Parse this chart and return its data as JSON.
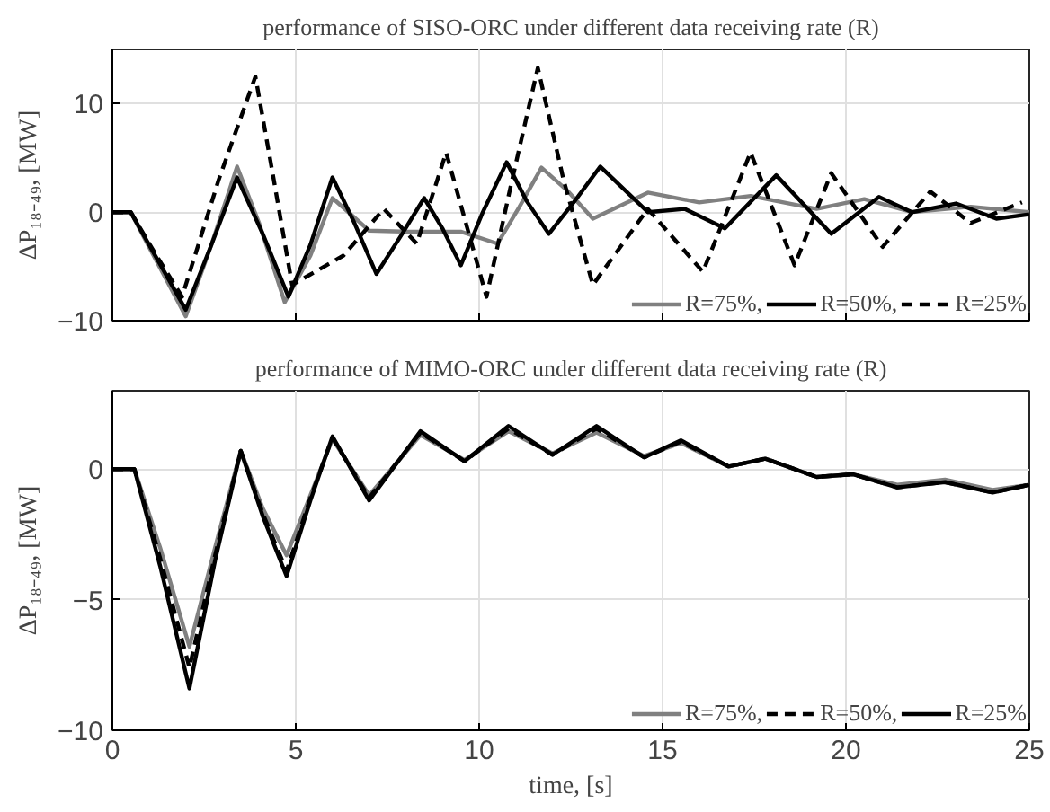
{
  "chart_data": [
    {
      "type": "line",
      "title": "performance of SISO-ORC under different data receiving rate (R)",
      "ylabel": "ΔP₁₈₋₄₉, [MW]",
      "xlim": [
        0,
        25
      ],
      "ylim": [
        -10,
        15
      ],
      "xticks": [
        0,
        5,
        10,
        15,
        20,
        25
      ],
      "yticks": [
        -10,
        0,
        10
      ],
      "tick_labels": "y",
      "grid": true,
      "legend": "bottom right",
      "series": [
        {
          "name": "R=75%,",
          "color": "#808080",
          "line_style": "solid",
          "x": [
            0,
            0.5,
            1.2,
            2.0,
            2.7,
            3.4,
            4.0,
            4.7,
            5.4,
            6.0,
            7.0,
            8.1,
            9.5,
            10.5,
            11.1,
            11.7,
            12.4,
            13.1,
            14.6,
            16.0,
            17.4,
            19.2,
            20.5,
            21.8,
            23.4,
            25
          ],
          "values": [
            0,
            0,
            -4.5,
            -9.6,
            -3,
            4.2,
            -1,
            -8.3,
            -4,
            1.3,
            -1.7,
            -1.8,
            -1.8,
            -2.9,
            0.5,
            4.1,
            2,
            -0.6,
            1.8,
            0.9,
            1.5,
            0.3,
            1.2,
            0,
            0.5,
            0
          ]
        },
        {
          "name": "R=50%,",
          "color": "#000000",
          "line_style": "solid",
          "x": [
            0,
            0.5,
            1.2,
            2.0,
            2.7,
            3.4,
            4.1,
            4.8,
            5.4,
            6.0,
            6.6,
            7.2,
            7.9,
            8.5,
            9.0,
            9.5,
            10.1,
            10.75,
            11.3,
            11.9,
            12.6,
            13.3,
            14.6,
            15.6,
            16.7,
            18.1,
            19.6,
            20.9,
            21.8,
            23.0,
            24.1,
            25
          ],
          "values": [
            0,
            0,
            -4.2,
            -9.0,
            -3,
            3.2,
            -2,
            -7.8,
            -3,
            3.2,
            -1,
            -5.7,
            -2,
            1.3,
            -1.5,
            -4.9,
            0,
            4.6,
            1,
            -2.0,
            1,
            4.2,
            0,
            0.3,
            -1.5,
            3.4,
            -2.0,
            1.4,
            0,
            0.8,
            -0.6,
            -0.2
          ]
        },
        {
          "name": "R=25%",
          "color": "#000000",
          "line_style": "dashed",
          "x": [
            0,
            0.5,
            1.2,
            1.9,
            2.9,
            3.9,
            4.4,
            4.9,
            6.3,
            7.4,
            8.3,
            9.1,
            10.2,
            10.9,
            11.6,
            12.3,
            13.1,
            14.6,
            16.1,
            17.4,
            18.6,
            19.6,
            21.0,
            22.3,
            23.4,
            24.8
          ],
          "values": [
            0,
            0,
            -4,
            -7.8,
            3,
            12.5,
            3,
            -6.7,
            -4,
            0.3,
            -2.9,
            5.5,
            -7.8,
            3,
            13.3,
            3,
            -6.7,
            0.3,
            -5.5,
            5.5,
            -4.9,
            3.6,
            -3.2,
            1.9,
            -1.0,
            0.9
          ]
        }
      ]
    },
    {
      "type": "line",
      "title": "performance of MIMO-ORC under different data receiving rate (R)",
      "xlabel": "time, [s]",
      "ylabel": "ΔP₁₈₋₄₉, [MW]",
      "xlim": [
        0,
        25
      ],
      "ylim": [
        -10,
        3
      ],
      "xticks": [
        0,
        5,
        10,
        15,
        20,
        25
      ],
      "yticks": [
        -10,
        -5,
        0
      ],
      "grid": true,
      "legend": "bottom right",
      "series": [
        {
          "name": "R=75%,",
          "color": "#808080",
          "line_style": "solid",
          "x": [
            0,
            0.6,
            1.3,
            2.1,
            2.8,
            3.5,
            4.1,
            4.75,
            5.4,
            6.0,
            7.0,
            8.4,
            9.6,
            10.8,
            12.0,
            13.2,
            14.5,
            15.5,
            16.8,
            17.8,
            19.2,
            20.2,
            21.4,
            22.7,
            24.0,
            25
          ],
          "values": [
            0,
            0,
            -3,
            -6.8,
            -3,
            0.7,
            -1.5,
            -3.3,
            -1,
            1.15,
            -1.0,
            1.3,
            0.35,
            1.45,
            0.6,
            1.4,
            0.5,
            1.0,
            0.1,
            0.4,
            -0.3,
            -0.2,
            -0.6,
            -0.4,
            -0.8,
            -0.6
          ]
        },
        {
          "name": "R=50%,",
          "color": "#000000",
          "line_style": "dashed",
          "x": [
            0,
            0.6,
            1.3,
            2.1,
            2.8,
            3.5,
            4.1,
            4.75,
            5.4,
            6.0,
            7.0,
            8.4,
            9.6,
            10.8,
            12.0,
            13.2,
            14.5,
            15.5,
            16.8,
            17.8,
            19.2,
            20.2,
            21.4,
            22.7,
            24.0,
            25
          ],
          "values": [
            0,
            0,
            -3.4,
            -7.6,
            -3.3,
            0.7,
            -1.7,
            -3.9,
            -1.1,
            1.2,
            -1.1,
            1.4,
            0.3,
            1.55,
            0.55,
            1.55,
            0.45,
            1.05,
            0.1,
            0.4,
            -0.3,
            -0.2,
            -0.7,
            -0.5,
            -0.9,
            -0.6
          ]
        },
        {
          "name": "R=25%",
          "color": "#000000",
          "line_style": "solid",
          "x": [
            0,
            0.6,
            1.3,
            2.1,
            2.8,
            3.5,
            4.1,
            4.75,
            5.4,
            6.0,
            7.0,
            8.4,
            9.6,
            10.8,
            12.0,
            13.2,
            14.5,
            15.5,
            16.8,
            17.8,
            19.2,
            20.2,
            21.4,
            22.7,
            24.0,
            25
          ],
          "values": [
            0,
            0,
            -3.7,
            -8.4,
            -3.5,
            0.7,
            -1.8,
            -4.1,
            -1.2,
            1.25,
            -1.2,
            1.45,
            0.3,
            1.65,
            0.55,
            1.65,
            0.45,
            1.1,
            0.1,
            0.4,
            -0.3,
            -0.2,
            -0.7,
            -0.5,
            -0.9,
            -0.6
          ]
        }
      ]
    }
  ]
}
